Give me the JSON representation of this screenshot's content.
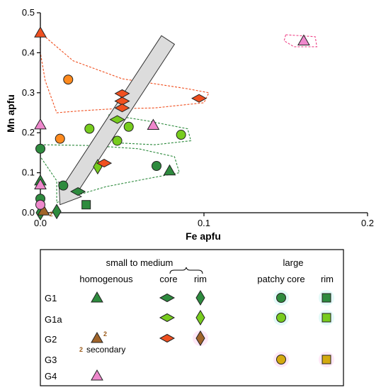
{
  "chart_data": {
    "type": "scatter",
    "xlabel": "Fe apfu",
    "ylabel": "Mn apfu",
    "xlim": [
      0,
      0.2
    ],
    "ylim": [
      0,
      0.5
    ],
    "x_ticks": [
      0,
      0.1,
      0.2
    ],
    "x_tick_labels": [
      "0.0",
      "0.1",
      "0.2"
    ],
    "y_ticks": [
      0,
      0.1,
      0.2,
      0.3,
      0.4,
      0.5
    ],
    "y_tick_labels": [
      "0.0",
      "0.1",
      "0.2",
      "0.3",
      "0.4",
      "0.5"
    ],
    "colors": {
      "G1": "#2e8b3e",
      "G1a": "#77cc1e",
      "G2": "#f05020",
      "G2_secondary": "#a0642a",
      "G3": "#d4aa10",
      "G4": "#ee88cc",
      "G4_large": "#ff8a1e"
    },
    "series": [
      {
        "group": "G1",
        "texture": "homogenous",
        "marker": "triangle",
        "color": "#2e8b3e",
        "points": [
          [
            0.0,
            0.08
          ],
          [
            0.079,
            0.105
          ]
        ]
      },
      {
        "group": "G1",
        "texture": "core",
        "marker": "diamond-h",
        "color": "#2e8b3e",
        "points": [
          [
            0.023,
            0.053
          ]
        ]
      },
      {
        "group": "G1",
        "texture": "rim",
        "marker": "diamond-v",
        "color": "#2e8b3e",
        "points": [
          [
            0.01,
            0.003
          ],
          [
            0.0,
            0.0
          ]
        ]
      },
      {
        "group": "G1",
        "texture": "patchy core",
        "marker": "circle",
        "color": "#2e8b3e",
        "points": [
          [
            0.0,
            0.16
          ],
          [
            0.0,
            0.035
          ],
          [
            0.014,
            0.068
          ],
          [
            0.071,
            0.117
          ]
        ]
      },
      {
        "group": "G1",
        "texture": "rim large",
        "marker": "square",
        "color": "#2e8b3e",
        "points": [
          [
            0.028,
            0.02
          ]
        ]
      },
      {
        "group": "G1a",
        "texture": "core",
        "marker": "diamond-h",
        "color": "#77cc1e",
        "points": [
          [
            0.047,
            0.233
          ]
        ]
      },
      {
        "group": "G1a",
        "texture": "rim",
        "marker": "diamond-v",
        "color": "#77cc1e",
        "points": [
          [
            0.035,
            0.115
          ]
        ]
      },
      {
        "group": "G1a",
        "texture": "patchy core",
        "marker": "circle",
        "color": "#77cc1e",
        "points": [
          [
            0.03,
            0.21
          ],
          [
            0.047,
            0.18
          ],
          [
            0.054,
            0.215
          ],
          [
            0.086,
            0.195
          ]
        ]
      },
      {
        "group": "G2",
        "texture": "homogenous",
        "marker": "triangle",
        "color": "#f05020",
        "points": [
          [
            0.0,
            0.45
          ]
        ]
      },
      {
        "group": "G2",
        "texture": "core",
        "marker": "diamond-h",
        "color": "#f05020",
        "points": [
          [
            0.05,
            0.298
          ],
          [
            0.05,
            0.279
          ],
          [
            0.05,
            0.262
          ],
          [
            0.097,
            0.286
          ],
          [
            0.039,
            0.124
          ]
        ]
      },
      {
        "group": "G2",
        "texture": "secondary",
        "marker": "triangle",
        "color": "#a0642a",
        "points": [
          [
            0.002,
            0.005
          ]
        ]
      },
      {
        "group": "G4",
        "texture": "homogenous",
        "marker": "triangle",
        "color": "#ee88cc",
        "points": [
          [
            0.0,
            0.22
          ],
          [
            0.069,
            0.219
          ],
          [
            0.161,
            0.43
          ],
          [
            0.0,
            0.07
          ]
        ]
      },
      {
        "group": "G4",
        "texture": "patchy core",
        "marker": "circle",
        "color": "#ee88cc",
        "points": [
          [
            0.0,
            0.02
          ]
        ]
      },
      {
        "group": "large",
        "texture": "patchy core",
        "marker": "circle",
        "color": "#ff8a1e",
        "points": [
          [
            0.017,
            0.333
          ],
          [
            0.012,
            0.185
          ]
        ]
      }
    ],
    "trend_arrow": {
      "from": [
        0.078,
        0.432
      ],
      "to": [
        0.012,
        0.02
      ]
    },
    "fields": [
      {
        "color": "#f05020",
        "points": [
          [
            0.0,
            0.45
          ],
          [
            0.02,
            0.38
          ],
          [
            0.05,
            0.335
          ],
          [
            0.09,
            0.31
          ],
          [
            0.103,
            0.3
          ],
          [
            0.1,
            0.275
          ],
          [
            0.07,
            0.262
          ],
          [
            0.045,
            0.26
          ],
          [
            0.025,
            0.255
          ],
          [
            0.01,
            0.25
          ],
          [
            0.003,
            0.33
          ],
          [
            0.0,
            0.4
          ]
        ]
      },
      {
        "color": "#2e8b3e",
        "points": [
          [
            0.0,
            0.17
          ],
          [
            0.03,
            0.168
          ],
          [
            0.06,
            0.16
          ],
          [
            0.082,
            0.14
          ],
          [
            0.085,
            0.1
          ],
          [
            0.065,
            0.085
          ],
          [
            0.04,
            0.065
          ],
          [
            0.015,
            0.035
          ],
          [
            0.01,
            0.025
          ],
          [
            0.01,
            0.08
          ],
          [
            0.0,
            0.14
          ]
        ]
      },
      {
        "color": "#2e8b3e",
        "points": [
          [
            0.042,
            0.245
          ],
          [
            0.065,
            0.23
          ],
          [
            0.09,
            0.21
          ],
          [
            0.092,
            0.18
          ],
          [
            0.07,
            0.17
          ],
          [
            0.045,
            0.175
          ],
          [
            0.04,
            0.21
          ]
        ]
      },
      {
        "color": "#ee4488",
        "points": [
          [
            0.15,
            0.445
          ],
          [
            0.168,
            0.44
          ],
          [
            0.169,
            0.415
          ],
          [
            0.155,
            0.415
          ],
          [
            0.149,
            0.43
          ]
        ]
      }
    ],
    "legend": {
      "col_small_medium": "small to medium",
      "col_large": "large",
      "homogenous": "homogenous",
      "core": "core",
      "rim": "rim",
      "patchy_core": "patchy core",
      "rim_large": "rim",
      "secondary_note": "secondary",
      "superscript": "2",
      "rows": [
        "G1",
        "G1a",
        "G2",
        "G3",
        "G4"
      ]
    }
  }
}
